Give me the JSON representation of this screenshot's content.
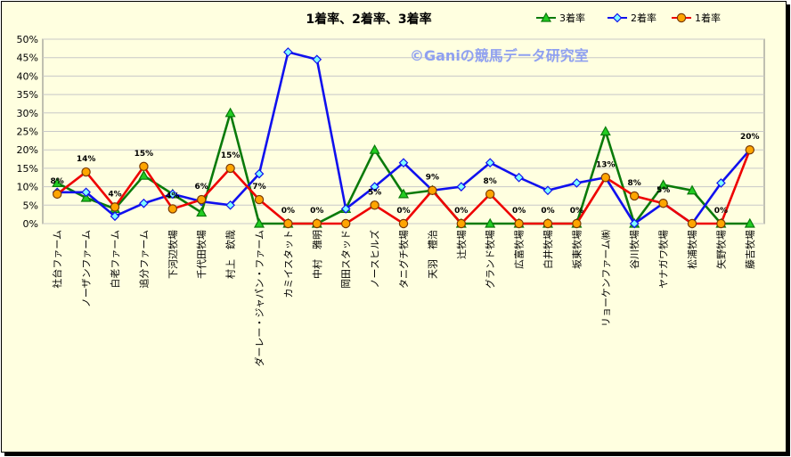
{
  "chart_data": {
    "type": "line",
    "title": "1着率、2着率、3着率",
    "watermark": "©Ganiの競馬データ研究室",
    "ylim": [
      0,
      50
    ],
    "yticks": [
      "0%",
      "5%",
      "10%",
      "15%",
      "20%",
      "25%",
      "30%",
      "35%",
      "40%",
      "45%",
      "50%"
    ],
    "grid": "horizontal",
    "legend_position": "top-right",
    "categories": [
      "社台ファーム",
      "ノーザンファーム",
      "白老ファーム",
      "追分ファーム",
      "下河辺牧場",
      "千代田牧場",
      "村上　欽哉",
      "ダーレー・ジャパン・ファーム",
      "カミイスタット",
      "中村　雅明",
      "岡田スタッド",
      "ノースヒルズ",
      "タニグチ牧場",
      "天羽　禮治",
      "辻牧場",
      "グランド牧場",
      "広富牧場",
      "白井牧場",
      "坂東牧場",
      "リョーケンファーム㈱",
      "谷川牧場",
      "ヤナガワ牧場",
      "松浦牧場",
      "矢野牧場",
      "藤吉牧場"
    ],
    "series": [
      {
        "name": "3着率",
        "color": "#0a7a0a",
        "marker": "triangle",
        "marker_fill": "#22cc22",
        "values": [
          11,
          7,
          4,
          13,
          8,
          3,
          30,
          0,
          0,
          0,
          4,
          20,
          8,
          9,
          0,
          0,
          0,
          0,
          0,
          25,
          0,
          10.5,
          9,
          0,
          0
        ]
      },
      {
        "name": "2着率",
        "color": "#1010ee",
        "marker": "diamond",
        "marker_fill": "#7fffff",
        "values": [
          8.5,
          8.5,
          2,
          5.5,
          8,
          6,
          5,
          13.5,
          46.5,
          44.5,
          4,
          10,
          16.5,
          9,
          10,
          16.5,
          12.5,
          9,
          11,
          12.5,
          0,
          5.5,
          0,
          11,
          20
        ]
      },
      {
        "name": "1着率",
        "color": "#ee0000",
        "marker": "circle",
        "marker_fill": "#ffa500",
        "values": [
          8,
          14,
          4.5,
          15.5,
          4,
          6.5,
          15,
          6.5,
          0,
          0,
          0,
          5,
          0,
          9,
          0,
          8,
          0,
          0,
          0,
          12.5,
          7.5,
          5.5,
          0,
          0,
          20
        ],
        "labels": [
          "8%",
          "14%",
          "4%",
          "15%",
          "4%",
          "6%",
          "15%",
          "7%",
          "0%",
          "0%",
          "",
          "5%",
          "0%",
          "9%",
          "0%",
          "8%",
          "0%",
          "0%",
          "0%",
          "13%",
          "8%",
          "5%",
          "",
          "0%",
          "20%"
        ]
      }
    ]
  }
}
